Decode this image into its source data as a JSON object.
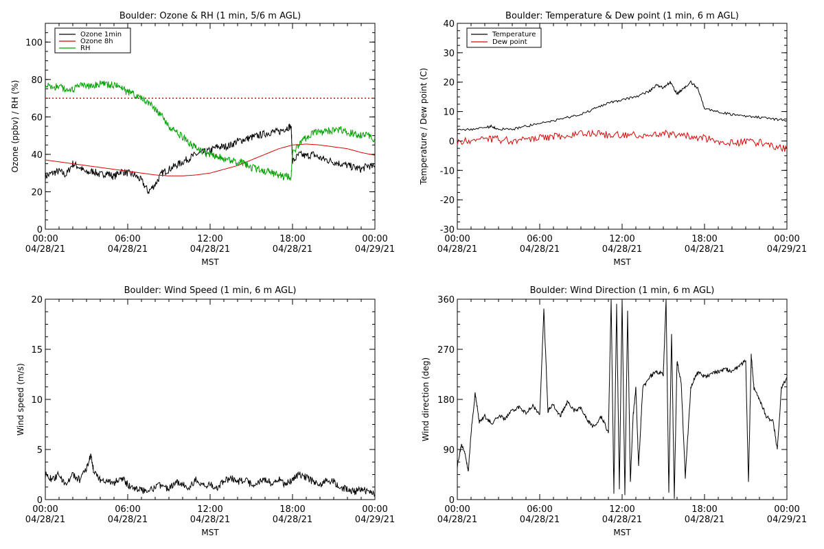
{
  "colors": {
    "ozone_1min": "#000000",
    "ozone_8h": "#dd0000",
    "rh": "#00a000",
    "temperature": "#000000",
    "dew_point": "#dd0000",
    "wind": "#000000",
    "reference_line": "#dd0000"
  },
  "x_ticks": [
    {
      "time": "00:00",
      "date": "04/28/21"
    },
    {
      "time": "06:00",
      "date": "04/28/21"
    },
    {
      "time": "12:00",
      "date": "04/28/21"
    },
    {
      "time": "18:00",
      "date": "04/28/21"
    },
    {
      "time": "00:00",
      "date": "04/29/21"
    }
  ],
  "chart_data": [
    {
      "type": "line",
      "title": "Boulder: Ozone & RH (1 min, 5/6 m AGL)",
      "xlabel": "MST",
      "ylabel": "Ozone (ppbv) / RH (%)",
      "xlim": [
        0,
        24
      ],
      "ylim": [
        0,
        110
      ],
      "yticks": [
        0,
        20,
        40,
        60,
        80,
        100
      ],
      "legend": "top-left",
      "reference_line": {
        "y": 70,
        "style": "dotted",
        "color": "#dd0000"
      },
      "series": [
        {
          "name": "Ozone 1min",
          "color": "#000000",
          "x": [
            0,
            0.5,
            1,
            1.5,
            2,
            2.5,
            3,
            3.5,
            4,
            4.5,
            5,
            5.5,
            6,
            6.5,
            7,
            7.5,
            8,
            8.5,
            9,
            9.5,
            10,
            10.5,
            11,
            11.5,
            12,
            12.5,
            13,
            13.5,
            14,
            14.5,
            15,
            15.5,
            16,
            16.5,
            17,
            17.5,
            17.9,
            18,
            18.5,
            19,
            19.5,
            20,
            20.5,
            21,
            21.5,
            22,
            22.5,
            23,
            23.5,
            24
          ],
          "y": [
            28,
            30,
            31,
            29,
            35,
            33,
            30,
            31,
            29,
            30,
            28,
            31,
            30,
            29,
            26,
            20,
            24,
            30,
            32,
            34,
            36,
            38,
            40,
            41,
            42,
            44,
            44,
            45,
            47,
            48,
            49,
            50,
            51,
            52,
            52,
            54,
            55,
            36,
            40,
            39,
            40,
            38,
            37,
            36,
            35,
            34,
            33,
            32,
            34,
            33
          ]
        },
        {
          "name": "Ozone 8h",
          "color": "#dd0000",
          "x": [
            0,
            1,
            2,
            3,
            4,
            5,
            6,
            7,
            8,
            9,
            10,
            11,
            12,
            13,
            14,
            15,
            16,
            17,
            18,
            19,
            20,
            21,
            22,
            23,
            24
          ],
          "y": [
            37,
            36,
            35,
            34,
            33,
            32,
            31,
            30,
            29,
            28.5,
            28.5,
            29,
            30,
            32,
            34,
            37,
            40,
            43,
            45,
            45.5,
            45,
            44,
            43,
            41,
            39.5
          ]
        },
        {
          "name": "RH",
          "color": "#00a000",
          "x": [
            0,
            0.5,
            1,
            1.5,
            2,
            2.5,
            3,
            3.5,
            4,
            4.5,
            5,
            5.5,
            6,
            6.5,
            7,
            7.5,
            8,
            8.5,
            9,
            9.5,
            10,
            10.5,
            11,
            11.5,
            12,
            12.5,
            13,
            13.5,
            14,
            14.5,
            15,
            15.5,
            16,
            16.5,
            17,
            17.5,
            17.9,
            18,
            18.5,
            19,
            19.5,
            20,
            20.5,
            21,
            21.5,
            22,
            22.5,
            23,
            23.5,
            24
          ],
          "y": [
            77,
            76,
            76,
            75,
            74,
            77,
            76,
            77,
            78,
            77,
            77,
            76,
            73,
            72,
            70,
            68,
            64,
            60,
            55,
            52,
            49,
            46,
            43,
            41,
            40,
            39,
            38,
            37,
            36,
            35,
            33,
            32,
            31,
            30,
            29,
            28,
            28,
            40,
            46,
            49,
            51,
            52,
            52,
            53,
            53,
            52,
            51,
            50,
            50,
            48
          ]
        }
      ]
    },
    {
      "type": "line",
      "title": "Boulder: Temperature & Dew point (1 min, 6 m AGL)",
      "xlabel": "MST",
      "ylabel": "Temperature / Dew point (C)",
      "xlim": [
        0,
        24
      ],
      "ylim": [
        -30,
        40
      ],
      "yticks": [
        -30,
        -20,
        -10,
        0,
        10,
        20,
        30,
        40
      ],
      "legend": "top-left",
      "series": [
        {
          "name": "Temperature",
          "color": "#000000",
          "x": [
            0,
            1,
            2,
            2.5,
            3,
            4,
            5,
            6,
            7,
            8,
            9,
            10,
            11,
            12,
            13,
            14,
            14.5,
            15,
            15.5,
            16,
            16.5,
            17,
            17.5,
            18,
            19,
            20,
            21,
            22,
            23,
            24
          ],
          "y": [
            4,
            4,
            4.5,
            5,
            4,
            4,
            5,
            6,
            7,
            8,
            9,
            11,
            13,
            14,
            15,
            17,
            19,
            18,
            20,
            16,
            18,
            20,
            18,
            11,
            10,
            9,
            8.5,
            8,
            7.5,
            7
          ]
        },
        {
          "name": "Dew point",
          "color": "#dd0000",
          "x": [
            0,
            1,
            2,
            3,
            4,
            5,
            6,
            7,
            8,
            9,
            10,
            11,
            12,
            13,
            14,
            15,
            16,
            17,
            18,
            19,
            20,
            21,
            22,
            23,
            24
          ],
          "y": [
            0,
            0,
            1,
            0.5,
            0,
            0.5,
            1,
            1.5,
            2,
            2.5,
            2.5,
            2,
            2,
            2,
            2,
            2.5,
            2,
            1.5,
            1,
            0,
            -0.5,
            -0.5,
            -0.5,
            -1.5,
            -3
          ]
        }
      ]
    },
    {
      "type": "line",
      "title": "Boulder: Wind Speed (1 min, 6 m AGL)",
      "xlabel": "MST",
      "ylabel": "Wind speed (m/s)",
      "xlim": [
        0,
        24
      ],
      "ylim": [
        0,
        20
      ],
      "yticks": [
        0,
        5,
        10,
        15,
        20
      ],
      "series": [
        {
          "color": "#000000",
          "x": [
            0,
            0.5,
            1,
            1.5,
            2,
            2.5,
            3,
            3.3,
            3.5,
            4,
            4.5,
            5,
            5.5,
            6,
            6.5,
            7,
            7.5,
            8,
            8.5,
            9,
            9.5,
            10,
            10.5,
            11,
            11.5,
            12,
            12.5,
            13,
            13.5,
            14,
            14.5,
            15,
            15.5,
            16,
            16.5,
            17,
            17.5,
            18,
            18.5,
            19,
            19.5,
            20,
            20.5,
            21,
            21.5,
            22,
            22.5,
            23,
            23.5,
            24
          ],
          "y": [
            2.5,
            2,
            2.5,
            1.5,
            2.5,
            2,
            3,
            4.5,
            3,
            2,
            1.8,
            1.6,
            2.2,
            1.5,
            1.2,
            0.9,
            1,
            1.2,
            1.5,
            1,
            1.8,
            1.5,
            1.2,
            2,
            1.4,
            1.5,
            1.2,
            1.8,
            2.2,
            1.7,
            2,
            1.5,
            1.8,
            2,
            1.6,
            2,
            1.5,
            2,
            2.5,
            2.2,
            1.8,
            1.5,
            2,
            1.8,
            1.2,
            1,
            0.8,
            1,
            0.8,
            0.5
          ]
        }
      ]
    },
    {
      "type": "line",
      "title": "Boulder: Wind Direction (1 min, 6 m AGL)",
      "xlabel": "MST",
      "ylabel": "Wind direction (deg)",
      "xlim": [
        0,
        24
      ],
      "ylim": [
        0,
        360
      ],
      "yticks": [
        0,
        90,
        180,
        270,
        360
      ],
      "series": [
        {
          "color": "#000000",
          "x": [
            0,
            0.3,
            0.6,
            0.8,
            1,
            1.3,
            1.6,
            2,
            2.5,
            3,
            3.5,
            4,
            4.5,
            5,
            5.5,
            6,
            6.3,
            6.6,
            7,
            7.5,
            8,
            8.5,
            9,
            9.5,
            10,
            10.5,
            11,
            11.2,
            11.4,
            11.6,
            11.8,
            12,
            12.2,
            12.4,
            12.6,
            12.8,
            13,
            13.2,
            13.5,
            14,
            14.5,
            15,
            15.2,
            15.4,
            15.6,
            15.8,
            16,
            16.3,
            16.6,
            17,
            17.3,
            17.6,
            18,
            18.5,
            19,
            19.5,
            20,
            20.5,
            21,
            21.2,
            21.4,
            21.6,
            22,
            22.5,
            23,
            23.3,
            23.6,
            24
          ],
          "y": [
            60,
            100,
            80,
            50,
            120,
            190,
            140,
            150,
            135,
            150,
            145,
            160,
            165,
            155,
            170,
            150,
            340,
            160,
            170,
            150,
            175,
            160,
            165,
            140,
            130,
            150,
            120,
            360,
            10,
            350,
            20,
            360,
            5,
            340,
            30,
            150,
            200,
            60,
            200,
            220,
            230,
            225,
            360,
            10,
            300,
            5,
            250,
            210,
            40,
            200,
            220,
            230,
            220,
            225,
            230,
            235,
            230,
            240,
            250,
            30,
            260,
            200,
            180,
            150,
            140,
            90,
            200,
            220
          ]
        }
      ]
    }
  ]
}
